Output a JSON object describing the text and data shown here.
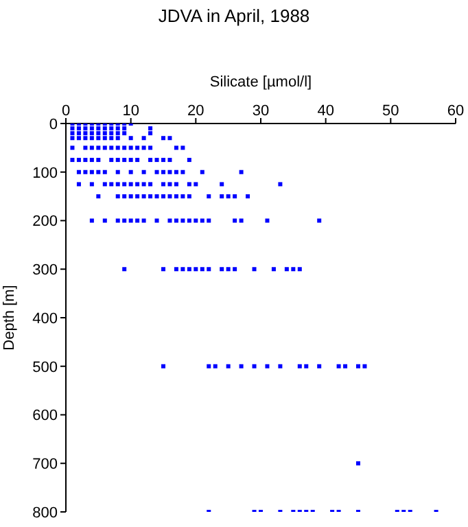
{
  "chart_data": {
    "type": "scatter",
    "title": "JDVA in April, 1988",
    "xlabel": "Silicate [µmol/l]",
    "ylabel": "Depth [m]",
    "xlim": [
      0,
      60
    ],
    "xticks": [
      0,
      10,
      20,
      30,
      40,
      50,
      60
    ],
    "ylim": [
      800,
      0
    ],
    "yticks": [
      0,
      100,
      200,
      300,
      400,
      500,
      600,
      700,
      800
    ],
    "grid": false,
    "legend": false,
    "marker": "square",
    "series": [
      {
        "color": "#0000ff",
        "x": [
          1,
          2,
          3,
          4,
          5,
          6,
          7,
          8,
          9,
          10,
          1,
          2,
          3,
          4,
          5,
          6,
          7,
          8,
          9,
          13,
          1,
          2,
          3,
          4,
          5,
          6,
          7,
          8,
          9,
          13,
          1,
          2,
          3,
          4,
          5,
          6,
          7,
          8,
          10,
          12,
          15,
          16,
          1,
          3,
          4,
          5,
          6,
          7,
          8,
          9,
          10,
          11,
          12,
          13,
          17,
          18,
          1,
          2,
          3,
          4,
          5,
          7,
          8,
          9,
          10,
          11,
          13,
          14,
          15,
          16,
          19,
          2,
          3,
          4,
          5,
          6,
          8,
          10,
          12,
          14,
          15,
          16,
          17,
          18,
          21,
          27,
          2,
          4,
          6,
          7,
          8,
          9,
          10,
          11,
          12,
          13,
          15,
          16,
          17,
          19,
          20,
          24,
          33,
          5,
          8,
          9,
          10,
          11,
          12,
          13,
          14,
          15,
          16,
          17,
          18,
          19,
          22,
          24,
          25,
          26,
          28,
          4,
          6,
          8,
          9,
          10,
          11,
          12,
          14,
          16,
          17,
          18,
          19,
          20,
          21,
          22,
          26,
          27,
          31,
          39,
          9,
          15,
          17,
          18,
          19,
          20,
          21,
          22,
          24,
          25,
          26,
          29,
          32,
          34,
          35,
          36,
          15,
          22,
          23,
          25,
          27,
          29,
          31,
          33,
          36,
          37,
          39,
          42,
          43,
          45,
          46,
          45,
          22,
          29,
          30,
          33,
          35,
          36,
          37,
          38,
          41,
          42,
          45,
          51,
          52,
          53,
          57
        ],
        "values": [
          0,
          0,
          0,
          0,
          0,
          0,
          0,
          0,
          0,
          0,
          10,
          10,
          10,
          10,
          10,
          10,
          10,
          10,
          10,
          10,
          20,
          20,
          20,
          20,
          20,
          20,
          20,
          20,
          20,
          20,
          30,
          30,
          30,
          30,
          30,
          30,
          30,
          30,
          30,
          30,
          30,
          30,
          50,
          50,
          50,
          50,
          50,
          50,
          50,
          50,
          50,
          50,
          50,
          50,
          50,
          50,
          75,
          75,
          75,
          75,
          75,
          75,
          75,
          75,
          75,
          75,
          75,
          75,
          75,
          75,
          75,
          100,
          100,
          100,
          100,
          100,
          100,
          100,
          100,
          100,
          100,
          100,
          100,
          100,
          100,
          100,
          125,
          125,
          125,
          125,
          125,
          125,
          125,
          125,
          125,
          125,
          125,
          125,
          125,
          125,
          125,
          125,
          125,
          150,
          150,
          150,
          150,
          150,
          150,
          150,
          150,
          150,
          150,
          150,
          150,
          150,
          150,
          150,
          150,
          150,
          150,
          200,
          200,
          200,
          200,
          200,
          200,
          200,
          200,
          200,
          200,
          200,
          200,
          200,
          200,
          200,
          200,
          200,
          200,
          200,
          300,
          300,
          300,
          300,
          300,
          300,
          300,
          300,
          300,
          300,
          300,
          300,
          300,
          300,
          300,
          300,
          500,
          500,
          500,
          500,
          500,
          500,
          500,
          500,
          500,
          500,
          500,
          500,
          500,
          500,
          500,
          700,
          800,
          800,
          800,
          800,
          800,
          800,
          800,
          800,
          800,
          800,
          800,
          800,
          800,
          800,
          800
        ]
      }
    ]
  }
}
